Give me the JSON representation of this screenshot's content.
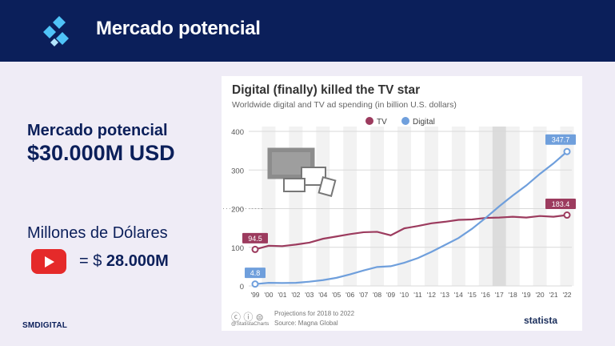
{
  "header": {
    "title": "Mercado potencial",
    "logo_icon": "diamond-logo-icon",
    "bg_color": "#0b1f5a"
  },
  "left": {
    "market_label": "Mercado potencial",
    "market_value": "$30.000M USD",
    "unit_label": "Millones de Dólares",
    "youtube_icon": "youtube-icon",
    "youtube_prefix": "= $",
    "youtube_value": "28.000M"
  },
  "brand": "SMDIGITAL",
  "chart_data": {
    "type": "line",
    "title": "Digital (finally) killed the TV star",
    "subtitle": "Worldwide digital and TV ad spending (in billion U.S. dollars)",
    "x": [
      "'99",
      "'00",
      "'01",
      "'02",
      "'03",
      "'04",
      "'05",
      "'06",
      "'07",
      "'08",
      "'09",
      "'10",
      "'11",
      "'12",
      "'13",
      "'14",
      "'15",
      "'16",
      "'17",
      "'18",
      "'19",
      "'20",
      "'21",
      "'22"
    ],
    "yticks": [
      0,
      100,
      200,
      300,
      400
    ],
    "ylim": [
      0,
      400
    ],
    "series": [
      {
        "name": "TV",
        "color": "#9c3b5e",
        "values": [
          94.5,
          104,
          103,
          107,
          112,
          122,
          128,
          134,
          139,
          140,
          131,
          149,
          155,
          162,
          166,
          171,
          172,
          176,
          177,
          179,
          177,
          181,
          179,
          183.4
        ]
      },
      {
        "name": "Digital",
        "color": "#6f9fdc",
        "values": [
          4.8,
          8,
          7.5,
          8,
          11,
          15,
          21,
          30,
          40,
          49,
          51,
          60,
          72,
          88,
          106,
          124,
          148,
          176,
          206,
          234,
          260,
          290,
          317,
          347.7
        ]
      }
    ],
    "annotations": {
      "tv_start": "94.5",
      "tv_end": "183.4",
      "digital_start": "4.8",
      "digital_end": "347.7"
    },
    "legend_position": "top",
    "grid": true
  },
  "footer": {
    "projection": "Projections for 2018 to 2022",
    "source": "Source: Magna Global",
    "handle": "@StatistaCharts",
    "logo": "statista"
  }
}
